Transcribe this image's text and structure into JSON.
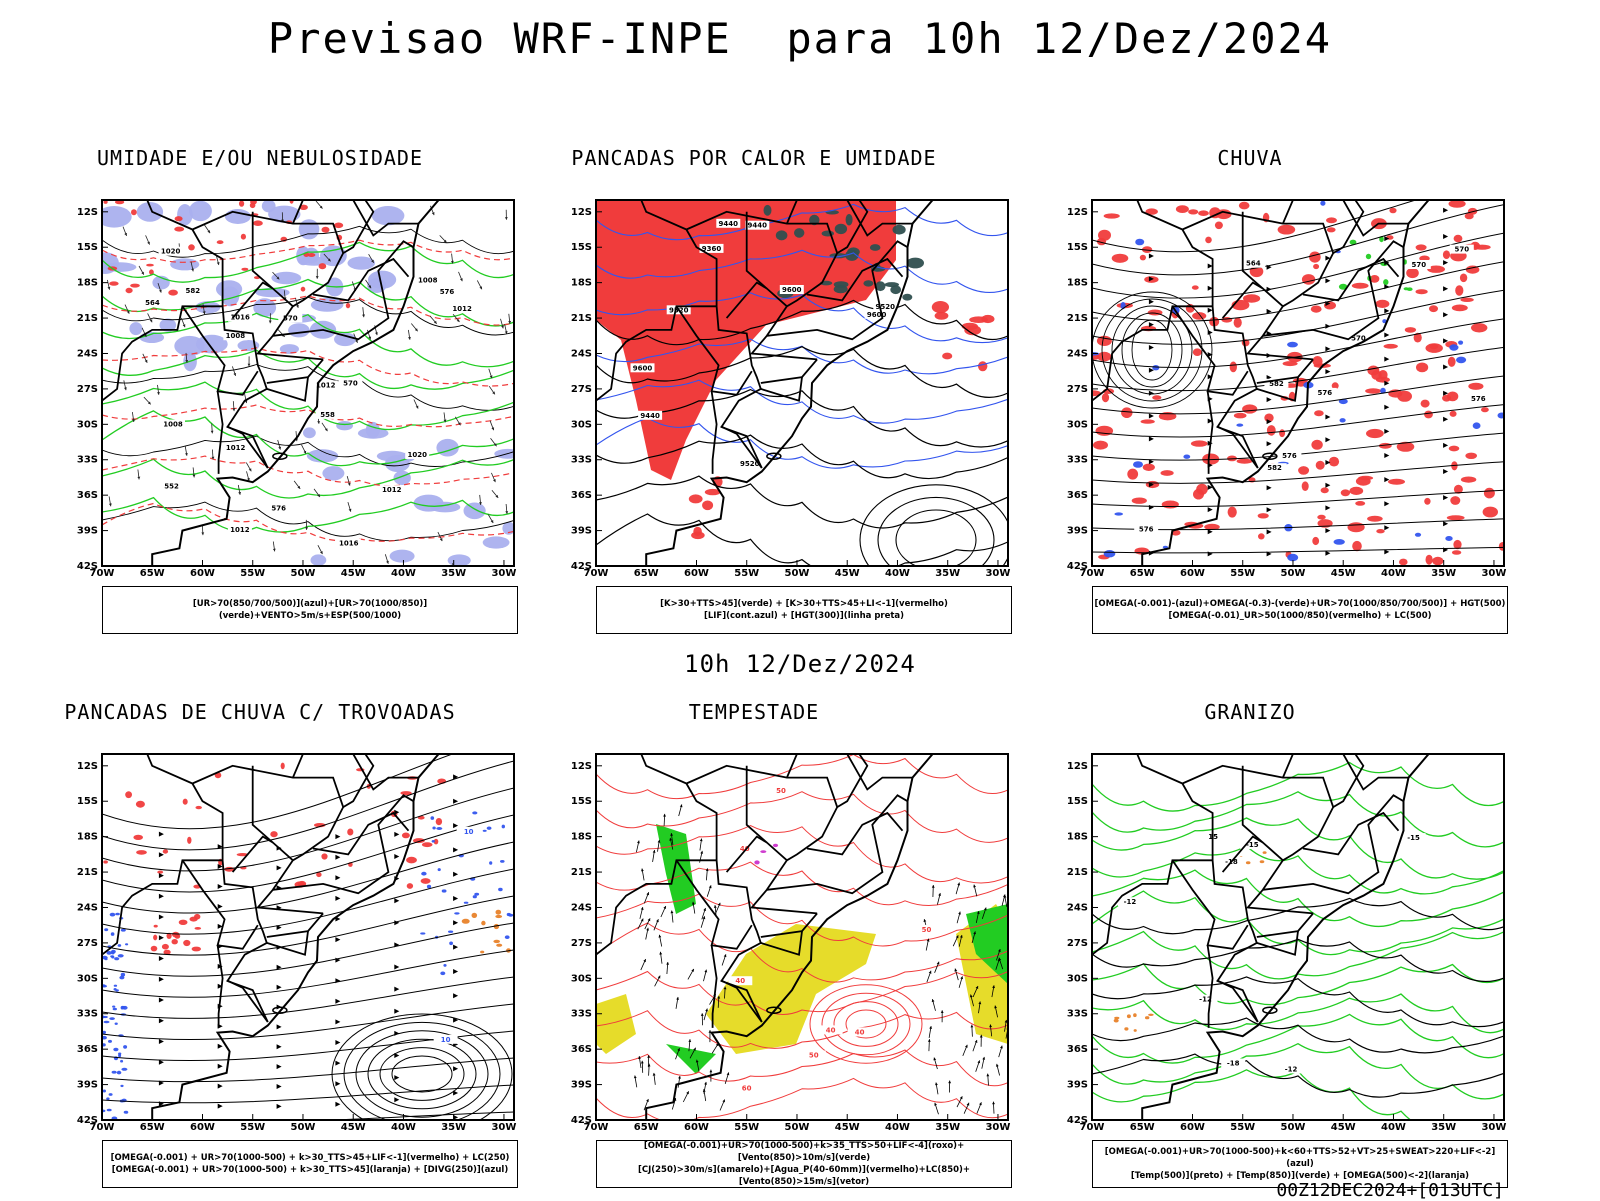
{
  "title": "Previsao WRF-INPE  para 10h 12/Dez/2024",
  "mid_label": "10h 12/Dez/2024",
  "footer": "00Z12DEC2024+[013UTC]",
  "axes": {
    "lat_labels": [
      "12S",
      "15S",
      "18S",
      "21S",
      "24S",
      "27S",
      "30S",
      "33S",
      "36S",
      "39S",
      "42S"
    ],
    "lon_labels": [
      "70W",
      "65W",
      "60W",
      "55W",
      "50W",
      "45W",
      "40W",
      "35W",
      "30W"
    ]
  },
  "panels": [
    {
      "title": "UMIDADE E/OU NEBULOSIDADE",
      "legend": [
        "[UR>70(850/700/500)](azul)+[UR>70(1000/850)](verde)+VENTO>5m/s+ESP(500/1000)"
      ],
      "contour_labels": [
        "1012",
        "1012",
        "1012",
        "1008",
        "1008",
        "1012",
        "1016",
        "1020",
        "1016",
        "1008",
        "1012",
        "1020",
        "570",
        "576",
        "582",
        "564",
        "558",
        "552",
        "576",
        "570"
      ]
    },
    {
      "title": "PANCADAS POR CALOR E UMIDADE",
      "legend": [
        "[K>30+TTS>45](verde) + [K>30+TTS>45+LI<-1](vermelho)",
        "[LIF](cont.azul) + [HGT(300)](linha preta)"
      ],
      "contour_labels": [
        "9600",
        "9600",
        "9520",
        "9440",
        "9520",
        "9440",
        "9360",
        "9600",
        "9520",
        "9440"
      ]
    },
    {
      "title": "CHUVA",
      "legend": [
        "[OMEGA(-0.001)-(azul)+OMEGA(-0.3)-(verde)+UR>70(1000/850/700/500)] + HGT(500)",
        "[OMEGA(-0.01)_UR>50(1000/850)(vermelho) + LC(500)"
      ],
      "contour_labels": [
        "582",
        "576",
        "576",
        "570",
        "564",
        "570",
        "576",
        "570",
        "582",
        "576"
      ]
    },
    {
      "title": "PANCADAS DE CHUVA C/ TROVOADAS",
      "legend": [
        "[OMEGA(-0.001) + UR>70(1000-500) + k>30_TTS>45+LIF<-1](vermelho) + LC(250)",
        "[OMEGA(-0.001) + UR>70(1000-500) + k>30_TTS>45](laranja) + [DIVG(250)](azul)"
      ],
      "contour_labels": [
        "10",
        "10"
      ]
    },
    {
      "title": "TEMPESTADE",
      "legend": [
        "[OMEGA(-0.001)+UR>70(1000-500)+k>35_TTS>50+LIF<-4](roxo)+[Vento(850)>10m/s](verde)",
        "[CJ(250)>30m/s](amarelo)+[Agua_P(40-60mm)](vermelho)+LC(850)+[Vento(850)>15m/s](vetor)"
      ],
      "contour_labels": [
        "40",
        "50",
        "40",
        "50",
        "40",
        "60",
        "40",
        "50"
      ]
    },
    {
      "title": "GRANIZO",
      "legend": [
        "[OMEGA(-0.001)+UR>70(1000-500)+k<60+TTS>52+VT>25+SWEAT>220+LIF<-2](azul)",
        "[Temp(500)](preto) + [Temp(850)](verde) + [OMEGA(500)<-2](laranja)"
      ],
      "contour_labels": [
        "-12",
        "-12",
        "-15",
        "-18",
        "-18",
        "-15",
        "-12",
        "15"
      ]
    }
  ],
  "colors": {
    "red": "#f03c3c",
    "green": "#22cc22",
    "blue": "#3355ee",
    "lavender": "#aab0ee",
    "dark_teal": "#2f4f4f",
    "yellow": "#e6dc2a",
    "orange": "#e8822a",
    "purple": "#cc33cc"
  }
}
